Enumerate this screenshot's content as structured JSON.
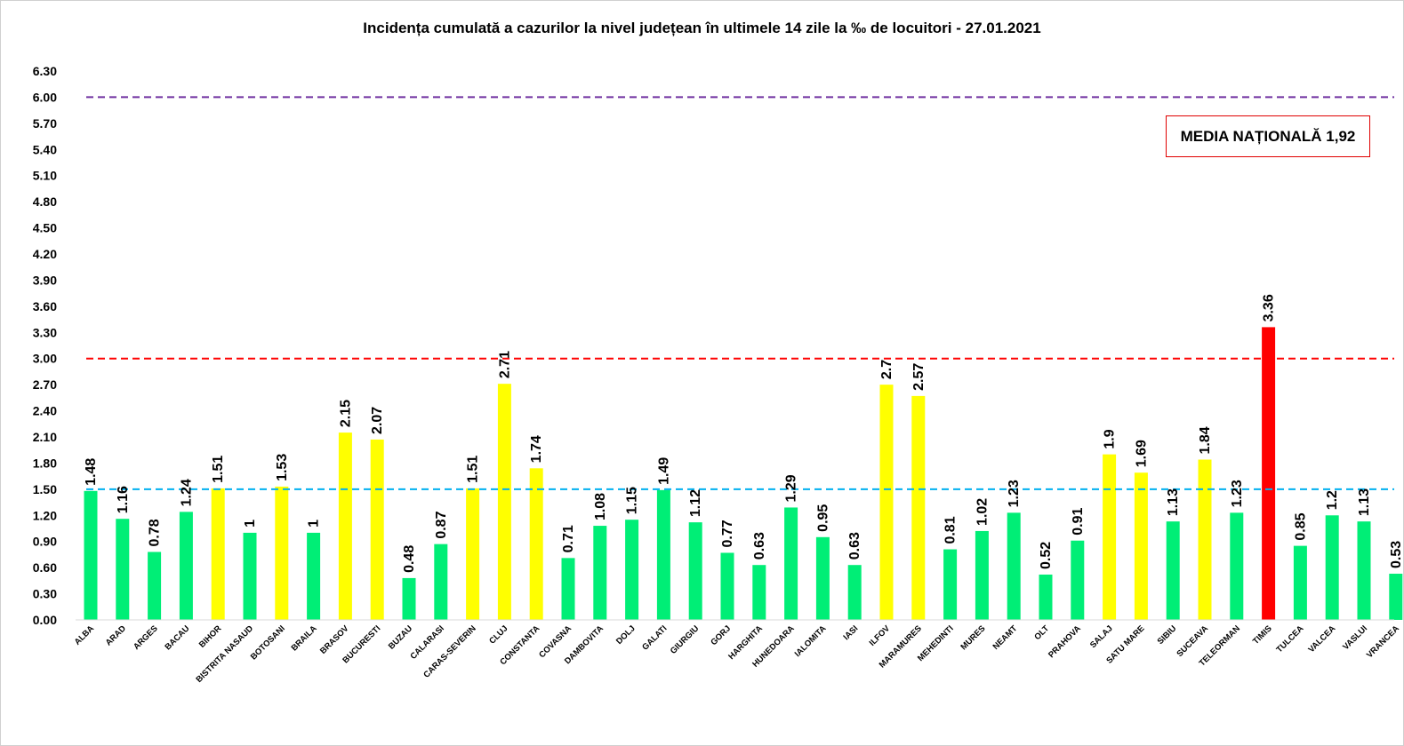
{
  "chart_data": {
    "type": "bar",
    "title": "Incidența cumulată a cazurilor la nivel județean în ultimele 14 zile la ‰ de locuitori - 27.01.2021",
    "xlabel": "",
    "ylabel": "",
    "ylim": [
      0,
      6.3
    ],
    "yticks": [
      "0.00",
      "0.30",
      "0.60",
      "0.90",
      "1.20",
      "1.50",
      "1.80",
      "2.10",
      "2.40",
      "2.70",
      "3.00",
      "3.30",
      "3.60",
      "3.90",
      "4.20",
      "4.50",
      "4.80",
      "5.10",
      "5.40",
      "5.70",
      "6.00",
      "6.30"
    ],
    "categories": [
      "ALBA",
      "ARAD",
      "ARGES",
      "BACAU",
      "BIHOR",
      "BISTRITA NASAUD",
      "BOTOSANI",
      "BRAILA",
      "BRASOV",
      "BUCURESTI",
      "BUZAU",
      "CALARASI",
      "CARAS-SEVERIN",
      "CLUJ",
      "CONSTANTA",
      "COVASNA",
      "DAMBOVITA",
      "DOLJ",
      "GALATI",
      "GIURGIU",
      "GORJ",
      "HARGHITA",
      "HUNEDOARA",
      "IALOMITA",
      "IASI",
      "ILFOV",
      "MARAMURES",
      "MEHEDINTI",
      "MURES",
      "NEAMT",
      "OLT",
      "PRAHOVA",
      "SALAJ",
      "SATU MARE",
      "SIBIU",
      "SUCEAVA",
      "TELEORMAN",
      "TIMIS",
      "TULCEA",
      "VALCEA",
      "VASLUI",
      "VRANCEA"
    ],
    "values": [
      1.48,
      1.16,
      0.78,
      1.24,
      1.51,
      1,
      1.53,
      1,
      2.15,
      2.07,
      0.48,
      0.87,
      1.51,
      2.71,
      1.74,
      0.71,
      1.08,
      1.15,
      1.49,
      1.12,
      0.77,
      0.63,
      1.29,
      0.95,
      0.63,
      2.7,
      2.57,
      0.81,
      1.02,
      1.23,
      0.52,
      0.91,
      1.9,
      1.69,
      1.13,
      1.84,
      1.23,
      3.36,
      0.85,
      1.2,
      1.13,
      0.53
    ],
    "data_labels": [
      "1.48",
      "1.16",
      "0.78",
      "1.24",
      "1.51",
      "1",
      "1.53",
      "1",
      "2.15",
      "2.07",
      "0.48",
      "0.87",
      "1.51",
      "2.71",
      "1.74",
      "0.71",
      "1.08",
      "1.15",
      "1.49",
      "1.12",
      "0.77",
      "0.63",
      "1.29",
      "0.95",
      "0.63",
      "2.7",
      "2.57",
      "0.81",
      "1.02",
      "1.23",
      "0.52",
      "0.91",
      "1.9",
      "1.69",
      "1.13",
      "1.84",
      "1.23",
      "3.36",
      "0.85",
      "1.2",
      "1.13",
      "0.53"
    ],
    "bar_colors": [
      "#00ee76",
      "#00ee76",
      "#00ee76",
      "#00ee76",
      "#ffff00",
      "#00ee76",
      "#ffff00",
      "#00ee76",
      "#ffff00",
      "#ffff00",
      "#00ee76",
      "#00ee76",
      "#ffff00",
      "#ffff00",
      "#ffff00",
      "#00ee76",
      "#00ee76",
      "#00ee76",
      "#00ee76",
      "#00ee76",
      "#00ee76",
      "#00ee76",
      "#00ee76",
      "#00ee76",
      "#00ee76",
      "#ffff00",
      "#ffff00",
      "#00ee76",
      "#00ee76",
      "#00ee76",
      "#00ee76",
      "#00ee76",
      "#ffff00",
      "#ffff00",
      "#00ee76",
      "#ffff00",
      "#00ee76",
      "#ff0000",
      "#00ee76",
      "#00ee76",
      "#00ee76",
      "#00ee76"
    ],
    "reference_lines": [
      {
        "value": 6.0,
        "color": "#7030a0",
        "style": "dashed"
      },
      {
        "value": 3.0,
        "color": "#ff0000",
        "style": "dashed"
      },
      {
        "value": 1.5,
        "color": "#00b0f0",
        "style": "dashed"
      }
    ],
    "annotation": "MEDIA NAȚIONALĂ  1,92",
    "annotation_border_color": "#e00000",
    "grid": false,
    "legend": "none"
  }
}
